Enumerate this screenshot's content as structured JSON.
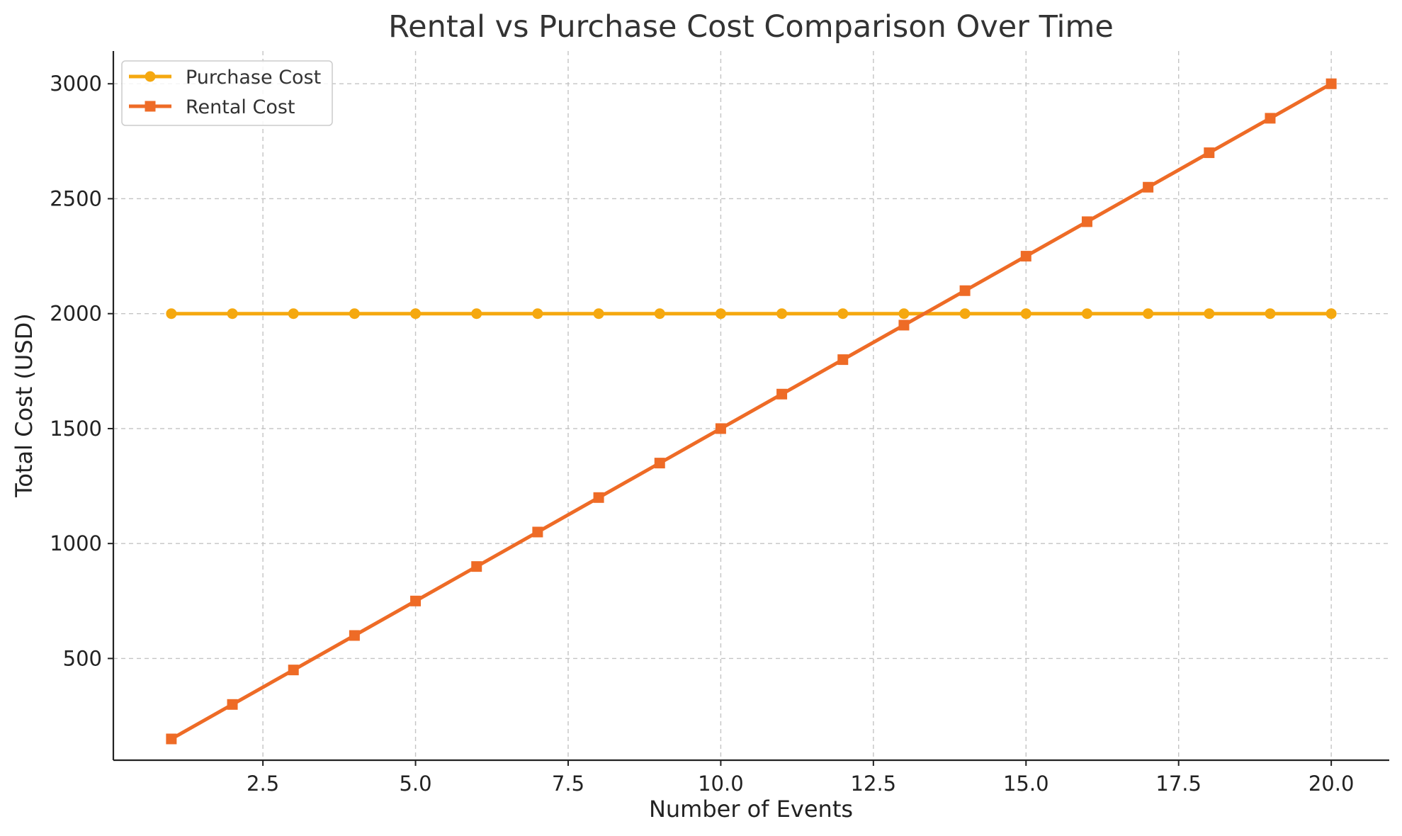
{
  "chart_data": {
    "type": "line",
    "title": "Rental vs Purchase Cost Comparison Over Time",
    "xlabel": "Number of Events",
    "ylabel": "Total Cost (USD)",
    "x": [
      1,
      2,
      3,
      4,
      5,
      6,
      7,
      8,
      9,
      10,
      11,
      12,
      13,
      14,
      15,
      16,
      17,
      18,
      19,
      20
    ],
    "xlim": [
      0.05,
      20.95
    ],
    "ylim": [
      57.5,
      3142.5
    ],
    "xticks": [
      2.5,
      5.0,
      7.5,
      10.0,
      12.5,
      15.0,
      17.5,
      20.0
    ],
    "xtick_labels": [
      "2.5",
      "5.0",
      "7.5",
      "10.0",
      "12.5",
      "15.0",
      "17.5",
      "20.0"
    ],
    "yticks": [
      500,
      1000,
      1500,
      2000,
      2500,
      3000
    ],
    "ytick_labels": [
      "500",
      "1000",
      "1500",
      "2000",
      "2500",
      "3000"
    ],
    "grid": true,
    "legend_position": "top-left",
    "series": [
      {
        "name": "Purchase Cost",
        "color": "#F5A80F",
        "marker": "circle",
        "values": [
          2000,
          2000,
          2000,
          2000,
          2000,
          2000,
          2000,
          2000,
          2000,
          2000,
          2000,
          2000,
          2000,
          2000,
          2000,
          2000,
          2000,
          2000,
          2000,
          2000
        ]
      },
      {
        "name": "Rental Cost",
        "color": "#EE6B26",
        "marker": "square",
        "values": [
          150,
          300,
          450,
          600,
          750,
          900,
          1050,
          1200,
          1350,
          1500,
          1650,
          1800,
          1950,
          2100,
          2250,
          2400,
          2550,
          2700,
          2850,
          3000
        ]
      }
    ]
  }
}
